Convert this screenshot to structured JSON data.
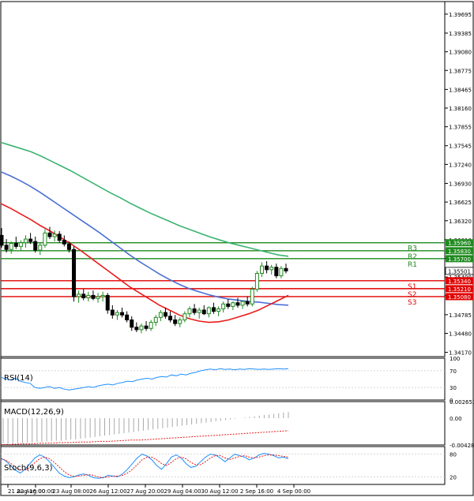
{
  "chart_data": {
    "type": "candlestick",
    "main": {
      "price_ticks": [
        "1.39695",
        "1.39385",
        "1.39080",
        "1.38775",
        "1.38465",
        "1.38160",
        "1.37855",
        "1.37545",
        "1.37240",
        "1.36930",
        "1.36625",
        "1.36320",
        "1.36010",
        "1.35705",
        "1.35400",
        "1.35095",
        "1.34785",
        "1.34480",
        "1.34170"
      ],
      "ylim": [
        1.341,
        1.399
      ],
      "current_price": "1.35501",
      "levels": [
        {
          "name": "R3",
          "value": 1.3596,
          "label": "1.35960",
          "color": "#1f8a1f"
        },
        {
          "name": "R2",
          "value": 1.3583,
          "label": "1.35830",
          "color": "#1f8a1f"
        },
        {
          "name": "R1",
          "value": 1.357,
          "label": "1.35700",
          "color": "#1f8a1f"
        },
        {
          "name": "S1",
          "value": 1.3534,
          "label": "1.35340",
          "color": "#e00000"
        },
        {
          "name": "S2",
          "value": 1.3521,
          "label": "1.35210",
          "color": "#e00000"
        },
        {
          "name": "S3",
          "value": 1.3508,
          "label": "1.35080",
          "color": "#e00000"
        }
      ],
      "candles": [
        [
          1.3608,
          1.362,
          1.3588,
          1.3592
        ],
        [
          1.3592,
          1.3602,
          1.358,
          1.3585
        ],
        [
          1.3585,
          1.3598,
          1.3578,
          1.3595
        ],
        [
          1.3595,
          1.3606,
          1.3586,
          1.359
        ],
        [
          1.359,
          1.36,
          1.3582,
          1.3596
        ],
        [
          1.3596,
          1.3608,
          1.3588,
          1.3602
        ],
        [
          1.3602,
          1.3612,
          1.3594,
          1.3598
        ],
        [
          1.3598,
          1.3606,
          1.358,
          1.3584
        ],
        [
          1.3584,
          1.3596,
          1.3576,
          1.3592
        ],
        [
          1.3592,
          1.3618,
          1.3588,
          1.3612
        ],
        [
          1.3612,
          1.3622,
          1.3602,
          1.3606
        ],
        [
          1.3606,
          1.3616,
          1.3598,
          1.361
        ],
        [
          1.361,
          1.3615,
          1.3596,
          1.36
        ],
        [
          1.36,
          1.3608,
          1.359,
          1.3594
        ],
        [
          1.3594,
          1.3598,
          1.358,
          1.3585
        ],
        [
          1.3585,
          1.359,
          1.35,
          1.3508
        ],
        [
          1.3508,
          1.3518,
          1.3498,
          1.3512
        ],
        [
          1.3512,
          1.352,
          1.3502,
          1.3506
        ],
        [
          1.3506,
          1.3516,
          1.35,
          1.351
        ],
        [
          1.351,
          1.3518,
          1.3502,
          1.3505
        ],
        [
          1.3505,
          1.3514,
          1.3498,
          1.3508
        ],
        [
          1.3508,
          1.3516,
          1.35,
          1.351
        ],
        [
          1.351,
          1.3514,
          1.348,
          1.3486
        ],
        [
          1.3486,
          1.3494,
          1.3472,
          1.3478
        ],
        [
          1.3478,
          1.3486,
          1.347,
          1.3482
        ],
        [
          1.3482,
          1.349,
          1.3474,
          1.3478
        ],
        [
          1.3478,
          1.3484,
          1.3466,
          1.347
        ],
        [
          1.347,
          1.3476,
          1.3452,
          1.3458
        ],
        [
          1.3458,
          1.3466,
          1.345,
          1.3454
        ],
        [
          1.3454,
          1.3464,
          1.3448,
          1.346
        ],
        [
          1.346,
          1.3468,
          1.3452,
          1.3456
        ],
        [
          1.3456,
          1.347,
          1.3452,
          1.3466
        ],
        [
          1.3466,
          1.3478,
          1.346,
          1.3474
        ],
        [
          1.3474,
          1.3486,
          1.3468,
          1.3482
        ],
        [
          1.3482,
          1.349,
          1.3472,
          1.3476
        ],
        [
          1.3476,
          1.3484,
          1.3466,
          1.347
        ],
        [
          1.347,
          1.3478,
          1.346,
          1.3464
        ],
        [
          1.3464,
          1.3474,
          1.3458,
          1.347
        ],
        [
          1.347,
          1.3484,
          1.3466,
          1.348
        ],
        [
          1.348,
          1.3492,
          1.3474,
          1.3488
        ],
        [
          1.3488,
          1.3496,
          1.3478,
          1.3482
        ],
        [
          1.3482,
          1.349,
          1.3472,
          1.3486
        ],
        [
          1.3486,
          1.3494,
          1.3478,
          1.348
        ],
        [
          1.348,
          1.3492,
          1.3474,
          1.349
        ],
        [
          1.349,
          1.3498,
          1.348,
          1.3484
        ],
        [
          1.3484,
          1.3492,
          1.3476,
          1.3488
        ],
        [
          1.3488,
          1.35,
          1.3482,
          1.3496
        ],
        [
          1.3496,
          1.3504,
          1.3488,
          1.3492
        ],
        [
          1.3492,
          1.35,
          1.3486,
          1.3498
        ],
        [
          1.3498,
          1.3506,
          1.349,
          1.3494
        ],
        [
          1.3494,
          1.3502,
          1.3488,
          1.35
        ],
        [
          1.35,
          1.3508,
          1.3492,
          1.3496
        ],
        [
          1.3496,
          1.3524,
          1.3492,
          1.352
        ],
        [
          1.352,
          1.355,
          1.3516,
          1.3546
        ],
        [
          1.3546,
          1.3564,
          1.354,
          1.3558
        ],
        [
          1.3558,
          1.3566,
          1.3546,
          1.3552
        ],
        [
          1.3552,
          1.356,
          1.3544,
          1.3556
        ],
        [
          1.3556,
          1.3562,
          1.3538,
          1.3542
        ],
        [
          1.3542,
          1.3558,
          1.3538,
          1.3554
        ],
        [
          1.3554,
          1.3562,
          1.3546,
          1.355
        ]
      ],
      "ma_fast": [
        1.366,
        1.3652,
        1.3643,
        1.3634,
        1.3624,
        1.3615,
        1.3605,
        1.3595,
        1.3584,
        1.3572,
        1.356,
        1.3548,
        1.3536,
        1.3524,
        1.3514,
        1.3504,
        1.3494,
        1.3486,
        1.3478,
        1.3472,
        1.3468,
        1.3466,
        1.3467,
        1.347,
        1.3475,
        1.348,
        1.3486,
        1.3494,
        1.3502,
        1.351
      ],
      "ma_mid": [
        1.3712,
        1.3705,
        1.3697,
        1.3688,
        1.3678,
        1.3667,
        1.3656,
        1.3645,
        1.3634,
        1.3623,
        1.3612,
        1.36,
        1.3588,
        1.3576,
        1.3565,
        1.3555,
        1.3545,
        1.3536,
        1.3528,
        1.3521,
        1.3516,
        1.3511,
        1.3507,
        1.3504,
        1.3502,
        1.35,
        1.3499,
        1.3497,
        1.3495,
        1.3494
      ],
      "ma_slow": [
        1.376,
        1.3755,
        1.375,
        1.3745,
        1.3738,
        1.373,
        1.3722,
        1.3714,
        1.3705,
        1.3696,
        1.3687,
        1.3678,
        1.367,
        1.3661,
        1.3653,
        1.3645,
        1.3638,
        1.3631,
        1.3624,
        1.3618,
        1.3612,
        1.3606,
        1.3601,
        1.3596,
        1.3592,
        1.3588,
        1.3584,
        1.358,
        1.3576,
        1.3574
      ]
    },
    "rsi": {
      "label": "RSI(14)",
      "ticks": [
        "100",
        "70",
        "30",
        "0"
      ],
      "values": [
        55,
        50,
        48,
        52,
        45,
        42,
        40,
        30,
        28,
        30,
        32,
        28,
        30,
        26,
        24,
        26,
        28,
        30,
        32,
        30,
        34,
        36,
        38,
        36,
        40,
        42,
        45,
        44,
        48,
        50,
        52,
        50,
        54,
        56,
        55,
        60,
        58,
        62,
        60,
        64,
        66,
        70,
        72,
        74,
        72,
        75,
        73,
        74,
        72,
        74,
        73,
        75,
        74,
        73,
        74,
        73,
        74,
        75,
        74,
        75
      ]
    },
    "macd": {
      "label": "MACD(12,26,9)",
      "ticks": [
        "0.002651",
        "0.00",
        "-0.00428"
      ],
      "ylim": [
        -0.00428,
        0.002651
      ],
      "hist": [
        -0.004,
        -0.0041,
        -0.0041,
        -0.004,
        -0.004,
        -0.0039,
        -0.0039,
        -0.0038,
        -0.0038,
        -0.0037,
        -0.0037,
        -0.0036,
        -0.0036,
        -0.0035,
        -0.0034,
        -0.0034,
        -0.0033,
        -0.0032,
        -0.0031,
        -0.003,
        -0.0029,
        -0.0028,
        -0.0027,
        -0.0026,
        -0.0025,
        -0.0024,
        -0.0023,
        -0.0022,
        -0.0021,
        -0.002,
        -0.0019,
        -0.0018,
        -0.0017,
        -0.0016,
        -0.0015,
        -0.0014,
        -0.0013,
        -0.0012,
        -0.0011,
        -0.001,
        -0.0009,
        -0.0008,
        -0.0007,
        -0.0006,
        -0.0005,
        -0.0004,
        -0.0003,
        -0.0002,
        -0.0001,
        0.0,
        0.0001,
        0.0002,
        0.0003,
        0.0004,
        0.0005,
        0.0006,
        0.0007,
        0.0008,
        0.0009,
        0.001
      ],
      "signal": [
        -0.0042,
        -0.0042,
        -0.0041,
        -0.0041,
        -0.004,
        -0.004,
        -0.0039,
        -0.0039,
        -0.0038,
        -0.0038,
        -0.0037,
        -0.0037,
        -0.0036,
        -0.0035,
        -0.0035,
        -0.0034,
        -0.0033,
        -0.0032,
        -0.0031,
        -0.003,
        -0.0029,
        -0.0028,
        -0.0027,
        -0.0026,
        -0.0025,
        -0.0024,
        -0.0023,
        -0.0022,
        -0.0021,
        -0.002
      ]
    },
    "stoch": {
      "label": "Stoch(9,6,3)",
      "ticks": [
        "80",
        "20"
      ],
      "k": [
        70,
        62,
        50,
        38,
        30,
        40,
        55,
        70,
        78,
        72,
        60,
        45,
        30,
        22,
        18,
        20,
        25,
        28,
        24,
        18,
        16,
        18,
        24,
        22,
        20,
        28,
        40,
        55,
        70,
        80,
        75,
        65,
        50,
        40,
        55,
        72,
        78,
        70,
        55,
        45,
        48,
        60,
        72,
        80,
        78,
        70,
        60,
        70,
        80,
        76,
        72,
        65,
        70,
        78,
        82,
        80,
        76,
        70,
        72,
        68
      ],
      "d": [
        68,
        64,
        56,
        46,
        38,
        38,
        45,
        58,
        68,
        72,
        68,
        58,
        46,
        34,
        25,
        21,
        22,
        24,
        26,
        24,
        20,
        18,
        20,
        22,
        22,
        24,
        30,
        40,
        52,
        65,
        72,
        72,
        65,
        55,
        50,
        58,
        68,
        72,
        68,
        58,
        52,
        52,
        60,
        70,
        76,
        76,
        70,
        66,
        70,
        74,
        76,
        72,
        70,
        72,
        76,
        78,
        78,
        76,
        74,
        72
      ]
    },
    "x_tick_labels": [
      "21 Aug 16:00",
      "22 Aug 00:00",
      "23 Aug 08:00",
      "26 Aug 12:00",
      "27 Aug 20:00",
      "29 Aug 04:00",
      "30 Aug 12:00",
      "2 Sep 16:00",
      "4 Sep 00:00"
    ],
    "colors": {
      "bull": "#1f8a1f",
      "bear": "#000000",
      "ma_fast": "#e81c1c",
      "ma_mid": "#4a6fd4",
      "ma_slow": "#3cb371",
      "indicator": "#1e90ff",
      "macd_signal": "#e81c1c"
    }
  }
}
